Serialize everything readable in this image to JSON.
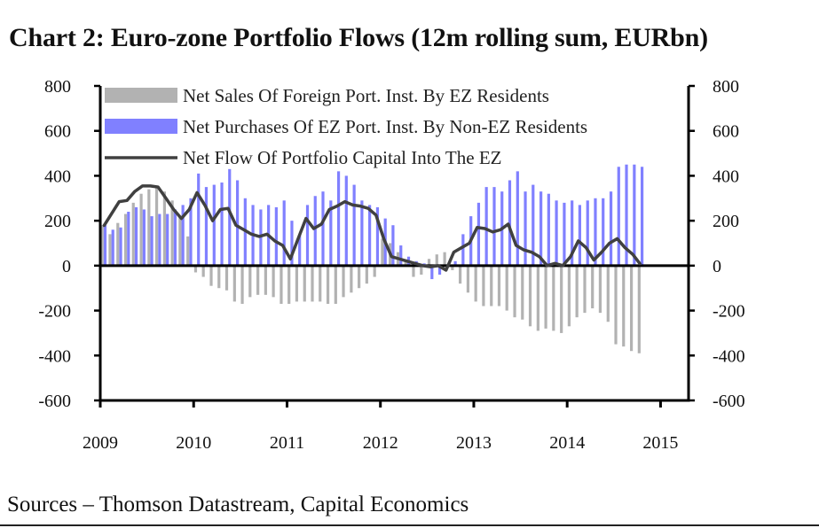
{
  "chart_data": {
    "type": "bar",
    "title": "Chart 2: Euro-zone Portfolio Flows (12m rolling sum, EURbn)",
    "source": "Sources – Thomson Datastream, Capital Economics",
    "ylim": [
      -600,
      800
    ],
    "ylim_right": [
      -600,
      800
    ],
    "yticks": [
      800,
      600,
      400,
      200,
      0,
      -200,
      -400,
      -600
    ],
    "yticks_right": [
      800,
      600,
      400,
      200,
      0,
      -200,
      -400,
      -600
    ],
    "xlim": [
      2009,
      2015.3
    ],
    "xticks": [
      2009,
      2010,
      2011,
      2012,
      2013,
      2014,
      2015
    ],
    "legend_position": "top",
    "colors": {
      "sales": "#b2b2b2",
      "purchases": "#8080ff",
      "flow": "#404040"
    },
    "x": [
      2009.0,
      2009.083,
      2009.167,
      2009.25,
      2009.333,
      2009.417,
      2009.5,
      2009.583,
      2009.667,
      2009.75,
      2009.833,
      2009.917,
      2010.0,
      2010.083,
      2010.167,
      2010.25,
      2010.333,
      2010.417,
      2010.5,
      2010.583,
      2010.667,
      2010.75,
      2010.833,
      2010.917,
      2011.0,
      2011.083,
      2011.167,
      2011.25,
      2011.333,
      2011.417,
      2011.5,
      2011.583,
      2011.667,
      2011.75,
      2011.833,
      2011.917,
      2012.0,
      2012.083,
      2012.167,
      2012.25,
      2012.333,
      2012.417,
      2012.5,
      2012.583,
      2012.667,
      2012.75,
      2012.833,
      2012.917,
      2013.0,
      2013.083,
      2013.167,
      2013.25,
      2013.333,
      2013.417,
      2013.5,
      2013.583,
      2013.667,
      2013.75,
      2013.833,
      2013.917,
      2014.0,
      2014.083,
      2014.167,
      2014.25,
      2014.333,
      2014.417,
      2014.5,
      2014.583,
      2014.667,
      2014.75
    ],
    "series": [
      {
        "name": "Net Sales Of Foreign Port. Inst. By EZ Residents",
        "kind": "bar",
        "values": [
          180,
          140,
          190,
          230,
          280,
          320,
          340,
          350,
          330,
          290,
          220,
          130,
          -30,
          -50,
          -90,
          -100,
          -110,
          -160,
          -170,
          -140,
          -130,
          -130,
          -140,
          -170,
          -170,
          -160,
          -160,
          -160,
          -160,
          -170,
          -170,
          -140,
          -120,
          -100,
          -80,
          -50,
          120,
          100,
          60,
          20,
          -50,
          -40,
          30,
          50,
          60,
          -20,
          -80,
          -120,
          -160,
          -180,
          -180,
          -180,
          -200,
          -230,
          -240,
          -270,
          -290,
          -280,
          -290,
          -300,
          -270,
          -230,
          -210,
          -190,
          -210,
          -250,
          -350,
          -360,
          -380,
          -390
        ]
      },
      {
        "name": "Net Purchases Of EZ Port. Inst. By Non-EZ Residents",
        "kind": "bar",
        "values": [
          180,
          160,
          170,
          240,
          260,
          250,
          220,
          230,
          230,
          250,
          270,
          300,
          410,
          350,
          360,
          370,
          430,
          380,
          300,
          270,
          250,
          270,
          260,
          290,
          200,
          140,
          270,
          310,
          330,
          290,
          420,
          400,
          360,
          290,
          270,
          260,
          210,
          180,
          90,
          40,
          20,
          10,
          -60,
          -40,
          0,
          20,
          140,
          220,
          280,
          350,
          350,
          330,
          380,
          420,
          330,
          360,
          330,
          320,
          290,
          280,
          290,
          270,
          290,
          300,
          300,
          330,
          440,
          450,
          450,
          440
        ]
      },
      {
        "name": "Net Flow Of Portfolio Capital Into The EZ",
        "kind": "line",
        "values": [
          175,
          230,
          285,
          290,
          330,
          355,
          355,
          350,
          300,
          250,
          210,
          250,
          325,
          270,
          200,
          250,
          255,
          180,
          160,
          140,
          130,
          140,
          110,
          90,
          30,
          120,
          210,
          165,
          185,
          250,
          265,
          285,
          270,
          265,
          255,
          225,
          120,
          40,
          30,
          20,
          10,
          0,
          -5,
          0,
          -20,
          60,
          80,
          100,
          170,
          165,
          150,
          160,
          185,
          90,
          70,
          60,
          40,
          0,
          10,
          0,
          40,
          110,
          80,
          25,
          60,
          100,
          120,
          80,
          50,
          5
        ]
      }
    ]
  }
}
